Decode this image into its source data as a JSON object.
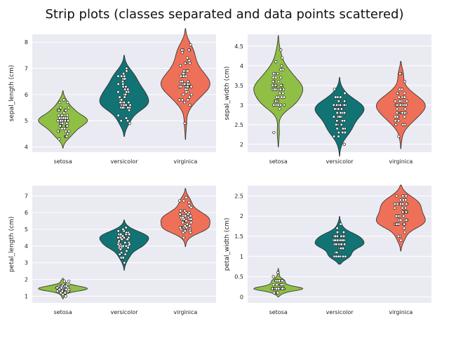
{
  "title": "Strip plots (classes separated and data points scattered)",
  "categories": [
    "setosa",
    "versicolor",
    "virginica"
  ],
  "colors": {
    "setosa": "#8fbf45",
    "versicolor": "#127374",
    "virginica": "#ef7058",
    "panel_bg": "#eaeaf2",
    "grid": "#ffffff",
    "point_fill": "#ffffff",
    "point_edge": "#222222",
    "violin_edge": "#2b2b2b"
  },
  "chart_data": [
    {
      "type": "violin",
      "ylabel": "sepal_length (cm)",
      "ylim": [
        3.8,
        8.3
      ],
      "yticks": [
        4,
        5,
        6,
        7,
        8
      ],
      "grid": true,
      "series": [
        {
          "name": "setosa",
          "values": [
            5.1,
            4.9,
            4.7,
            4.6,
            5.0,
            5.4,
            4.6,
            5.0,
            4.4,
            4.9,
            5.4,
            4.8,
            4.8,
            4.3,
            5.8,
            5.7,
            5.4,
            5.1,
            5.7,
            5.1,
            5.4,
            5.1,
            4.6,
            5.1,
            4.8,
            5.0,
            5.0,
            5.2,
            5.2,
            4.7,
            4.8,
            5.4,
            5.2,
            5.5,
            4.9,
            5.0,
            5.5,
            4.9,
            4.4,
            5.1,
            5.0,
            4.5,
            4.4,
            5.0,
            5.1,
            4.8,
            5.1,
            4.6,
            5.3,
            5.0
          ]
        },
        {
          "name": "versicolor",
          "values": [
            7.0,
            6.4,
            6.9,
            5.5,
            6.5,
            5.7,
            6.3,
            4.9,
            6.6,
            5.2,
            5.0,
            5.9,
            6.0,
            6.1,
            5.6,
            6.7,
            5.6,
            5.8,
            6.2,
            5.6,
            5.9,
            6.1,
            6.3,
            6.1,
            6.4,
            6.6,
            6.8,
            6.7,
            6.0,
            5.7,
            5.5,
            5.5,
            5.8,
            6.0,
            5.4,
            6.0,
            6.7,
            6.3,
            5.6,
            5.5,
            5.5,
            6.1,
            5.8,
            5.0,
            5.6,
            5.7,
            5.7,
            6.2,
            5.1,
            5.7
          ]
        },
        {
          "name": "virginica",
          "values": [
            6.3,
            5.8,
            7.1,
            6.3,
            6.5,
            7.6,
            4.9,
            7.3,
            6.7,
            7.2,
            6.5,
            6.4,
            6.8,
            5.7,
            5.8,
            6.4,
            6.5,
            7.7,
            7.7,
            6.0,
            6.9,
            5.6,
            7.7,
            6.3,
            6.7,
            7.2,
            6.2,
            6.1,
            6.4,
            7.2,
            7.4,
            7.9,
            6.4,
            6.3,
            6.1,
            7.7,
            6.3,
            6.4,
            6.0,
            6.9,
            6.7,
            6.9,
            5.8,
            6.8,
            6.7,
            6.7,
            6.3,
            6.5,
            6.2,
            5.9
          ]
        }
      ]
    },
    {
      "type": "violin",
      "ylabel": "sepal_width (cm)",
      "ylim": [
        1.8,
        4.8
      ],
      "yticks": [
        2.0,
        2.5,
        3.0,
        3.5,
        4.0,
        4.5
      ],
      "grid": true,
      "series": [
        {
          "name": "setosa",
          "values": [
            3.5,
            3.0,
            3.2,
            3.1,
            3.6,
            3.9,
            3.4,
            3.4,
            2.9,
            3.1,
            3.7,
            3.4,
            3.0,
            3.0,
            4.0,
            4.4,
            3.9,
            3.5,
            3.8,
            3.8,
            3.4,
            3.7,
            3.6,
            3.3,
            3.4,
            3.0,
            3.4,
            3.5,
            3.4,
            3.2,
            3.1,
            3.4,
            4.1,
            4.2,
            3.1,
            3.2,
            3.5,
            3.6,
            3.0,
            3.4,
            3.5,
            2.3,
            3.2,
            3.5,
            3.8,
            3.0,
            3.8,
            3.2,
            3.7,
            3.3
          ]
        },
        {
          "name": "versicolor",
          "values": [
            3.2,
            3.2,
            3.1,
            2.3,
            2.8,
            2.8,
            3.3,
            2.4,
            2.9,
            2.7,
            2.0,
            3.0,
            2.2,
            2.9,
            2.9,
            3.1,
            3.0,
            2.7,
            2.2,
            2.5,
            3.2,
            2.8,
            2.5,
            2.8,
            2.9,
            3.0,
            2.8,
            3.0,
            2.9,
            2.6,
            2.4,
            2.4,
            2.7,
            2.7,
            3.0,
            3.4,
            3.1,
            2.3,
            3.0,
            2.5,
            2.6,
            3.0,
            2.6,
            2.3,
            2.7,
            3.0,
            2.9,
            2.9,
            2.5,
            2.8
          ]
        },
        {
          "name": "virginica",
          "values": [
            3.3,
            2.7,
            3.0,
            2.9,
            3.0,
            3.0,
            2.5,
            2.9,
            2.5,
            3.6,
            3.2,
            2.7,
            3.0,
            2.5,
            2.8,
            3.2,
            3.0,
            3.8,
            2.6,
            2.2,
            3.2,
            2.8,
            2.8,
            2.7,
            3.3,
            3.2,
            2.8,
            3.0,
            2.8,
            3.0,
            2.8,
            3.8,
            2.8,
            2.8,
            2.6,
            3.0,
            3.4,
            3.1,
            3.0,
            3.1,
            3.1,
            3.1,
            2.7,
            3.2,
            3.3,
            3.0,
            2.5,
            3.0,
            3.4,
            3.0
          ]
        }
      ]
    },
    {
      "type": "violin",
      "ylabel": "petal_length (cm)",
      "ylim": [
        0.6,
        7.6
      ],
      "yticks": [
        1,
        2,
        3,
        4,
        5,
        6,
        7
      ],
      "grid": true,
      "series": [
        {
          "name": "setosa",
          "values": [
            1.4,
            1.4,
            1.3,
            1.5,
            1.4,
            1.7,
            1.4,
            1.5,
            1.4,
            1.5,
            1.5,
            1.6,
            1.4,
            1.1,
            1.2,
            1.5,
            1.3,
            1.4,
            1.7,
            1.5,
            1.7,
            1.5,
            1.0,
            1.7,
            1.9,
            1.6,
            1.6,
            1.5,
            1.4,
            1.6,
            1.6,
            1.5,
            1.5,
            1.4,
            1.5,
            1.2,
            1.3,
            1.4,
            1.3,
            1.5,
            1.3,
            1.3,
            1.3,
            1.6,
            1.9,
            1.4,
            1.6,
            1.4,
            1.5,
            1.4
          ]
        },
        {
          "name": "versicolor",
          "values": [
            4.7,
            4.5,
            4.9,
            4.0,
            4.6,
            4.5,
            4.7,
            3.3,
            4.6,
            3.9,
            3.5,
            4.2,
            4.0,
            4.7,
            3.6,
            4.4,
            4.5,
            4.1,
            4.5,
            3.9,
            4.8,
            4.0,
            4.9,
            4.7,
            4.3,
            4.4,
            4.8,
            5.0,
            4.5,
            3.5,
            3.8,
            3.7,
            3.9,
            5.1,
            4.5,
            4.5,
            4.7,
            4.4,
            4.1,
            4.0,
            4.4,
            4.6,
            4.0,
            3.3,
            4.2,
            4.2,
            4.2,
            4.3,
            3.0,
            4.1
          ]
        },
        {
          "name": "virginica",
          "values": [
            6.0,
            5.1,
            5.9,
            5.6,
            5.8,
            6.6,
            4.5,
            6.3,
            5.8,
            6.1,
            5.1,
            5.3,
            5.5,
            5.0,
            5.1,
            5.3,
            5.5,
            6.7,
            6.9,
            5.0,
            5.7,
            4.9,
            6.7,
            4.9,
            5.7,
            6.0,
            4.8,
            4.9,
            5.6,
            5.8,
            6.1,
            6.4,
            5.6,
            5.1,
            5.6,
            6.1,
            5.6,
            5.5,
            4.8,
            5.4,
            5.6,
            5.1,
            5.1,
            5.9,
            5.7,
            5.2,
            5.0,
            5.2,
            5.4,
            5.1
          ]
        }
      ]
    },
    {
      "type": "violin",
      "ylabel": "petal_width (cm)",
      "ylim": [
        -0.15,
        2.75
      ],
      "yticks": [
        0.0,
        0.5,
        1.0,
        1.5,
        2.0,
        2.5
      ],
      "grid": true,
      "series": [
        {
          "name": "setosa",
          "values": [
            0.2,
            0.2,
            0.2,
            0.2,
            0.2,
            0.4,
            0.3,
            0.2,
            0.2,
            0.1,
            0.2,
            0.2,
            0.1,
            0.1,
            0.2,
            0.4,
            0.4,
            0.3,
            0.3,
            0.3,
            0.2,
            0.4,
            0.2,
            0.5,
            0.2,
            0.2,
            0.4,
            0.2,
            0.2,
            0.2,
            0.2,
            0.4,
            0.1,
            0.2,
            0.2,
            0.2,
            0.2,
            0.1,
            0.2,
            0.2,
            0.3,
            0.3,
            0.2,
            0.6,
            0.4,
            0.3,
            0.2,
            0.2,
            0.2,
            0.2
          ]
        },
        {
          "name": "versicolor",
          "values": [
            1.4,
            1.5,
            1.5,
            1.3,
            1.5,
            1.3,
            1.6,
            1.0,
            1.3,
            1.4,
            1.0,
            1.5,
            1.0,
            1.4,
            1.3,
            1.4,
            1.5,
            1.0,
            1.5,
            1.1,
            1.8,
            1.3,
            1.5,
            1.2,
            1.3,
            1.4,
            1.4,
            1.7,
            1.5,
            1.0,
            1.1,
            1.0,
            1.2,
            1.6,
            1.5,
            1.6,
            1.5,
            1.3,
            1.3,
            1.3,
            1.2,
            1.4,
            1.2,
            1.0,
            1.3,
            1.2,
            1.3,
            1.3,
            1.1,
            1.3
          ]
        },
        {
          "name": "virginica",
          "values": [
            2.5,
            1.9,
            2.1,
            1.8,
            2.2,
            2.1,
            1.7,
            1.8,
            1.8,
            2.5,
            2.0,
            1.9,
            2.1,
            2.0,
            2.4,
            2.3,
            1.8,
            2.2,
            2.3,
            1.5,
            2.3,
            2.0,
            2.0,
            1.8,
            2.1,
            1.8,
            1.8,
            1.8,
            2.1,
            1.6,
            1.9,
            2.0,
            2.2,
            1.5,
            1.4,
            2.3,
            2.4,
            1.8,
            1.8,
            2.1,
            2.4,
            2.3,
            1.9,
            2.3,
            2.5,
            2.3,
            1.9,
            2.0,
            2.3,
            1.8
          ]
        }
      ]
    }
  ]
}
